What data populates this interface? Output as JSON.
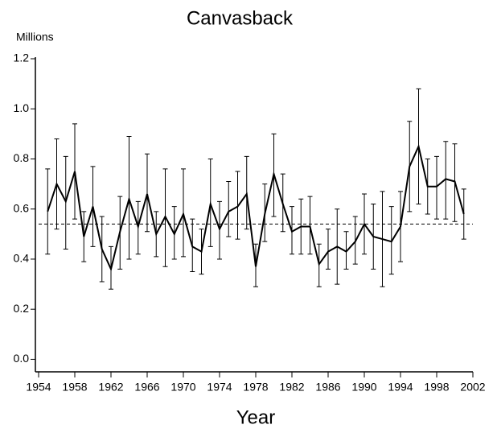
{
  "chart_data": {
    "type": "line",
    "title": "Canvasback",
    "y_label": "Millions",
    "x_label": "Year",
    "x": [
      1955,
      1956,
      1957,
      1958,
      1959,
      1960,
      1961,
      1962,
      1963,
      1964,
      1965,
      1966,
      1967,
      1968,
      1969,
      1970,
      1971,
      1972,
      1973,
      1974,
      1975,
      1976,
      1977,
      1978,
      1979,
      1980,
      1981,
      1982,
      1983,
      1984,
      1985,
      1986,
      1987,
      1988,
      1989,
      1990,
      1991,
      1992,
      1993,
      1994,
      1995,
      1996,
      1997,
      1998,
      1999,
      2000,
      2001
    ],
    "series": [
      {
        "name": "Canvasback",
        "color": "#000000",
        "values": [
          0.59,
          0.7,
          0.63,
          0.75,
          0.49,
          0.61,
          0.44,
          0.36,
          0.51,
          0.64,
          0.53,
          0.66,
          0.5,
          0.57,
          0.5,
          0.58,
          0.45,
          0.43,
          0.62,
          0.52,
          0.59,
          0.61,
          0.66,
          0.37,
          0.58,
          0.74,
          0.62,
          0.51,
          0.53,
          0.53,
          0.38,
          0.43,
          0.45,
          0.43,
          0.47,
          0.54,
          0.49,
          0.48,
          0.47,
          0.53,
          0.77,
          0.85,
          0.69,
          0.69,
          0.72,
          0.71,
          0.58
        ],
        "lower": [
          0.42,
          0.52,
          0.44,
          0.56,
          0.39,
          0.45,
          0.31,
          0.28,
          0.36,
          0.4,
          0.42,
          0.51,
          0.41,
          0.37,
          0.4,
          0.41,
          0.35,
          0.34,
          0.45,
          0.4,
          0.49,
          0.48,
          0.52,
          0.29,
          0.47,
          0.57,
          0.51,
          0.42,
          0.42,
          0.42,
          0.29,
          0.36,
          0.3,
          0.36,
          0.38,
          0.42,
          0.36,
          0.29,
          0.34,
          0.39,
          0.59,
          0.62,
          0.58,
          0.56,
          0.56,
          0.55,
          0.48
        ],
        "upper": [
          0.76,
          0.88,
          0.81,
          0.94,
          0.59,
          0.77,
          0.57,
          0.45,
          0.65,
          0.89,
          0.63,
          0.82,
          0.59,
          0.76,
          0.61,
          0.76,
          0.56,
          0.52,
          0.8,
          0.63,
          0.71,
          0.75,
          0.81,
          0.46,
          0.7,
          0.9,
          0.74,
          0.61,
          0.64,
          0.65,
          0.46,
          0.52,
          0.6,
          0.51,
          0.57,
          0.66,
          0.62,
          0.67,
          0.61,
          0.67,
          0.95,
          1.08,
          0.8,
          0.81,
          0.87,
          0.86,
          0.68
        ]
      }
    ],
    "reference_line": 0.54,
    "xlim": [
      1954,
      2002
    ],
    "xticks": [
      1954,
      1958,
      1962,
      1966,
      1970,
      1974,
      1978,
      1982,
      1986,
      1990,
      1994,
      1998,
      2002
    ],
    "ylim": [
      -0.05,
      1.2
    ],
    "yticks": [
      {
        "value": 0,
        "label": "0.0"
      },
      {
        "value": 0.2,
        "label": "0.2"
      },
      {
        "value": 0.4,
        "label": "0.4"
      },
      {
        "value": 0.6,
        "label": "0.6"
      },
      {
        "value": 0.8,
        "label": "0.8"
      },
      {
        "value": 1,
        "label": "1.0"
      },
      {
        "value": 1.2,
        "label": "1.2"
      }
    ]
  }
}
